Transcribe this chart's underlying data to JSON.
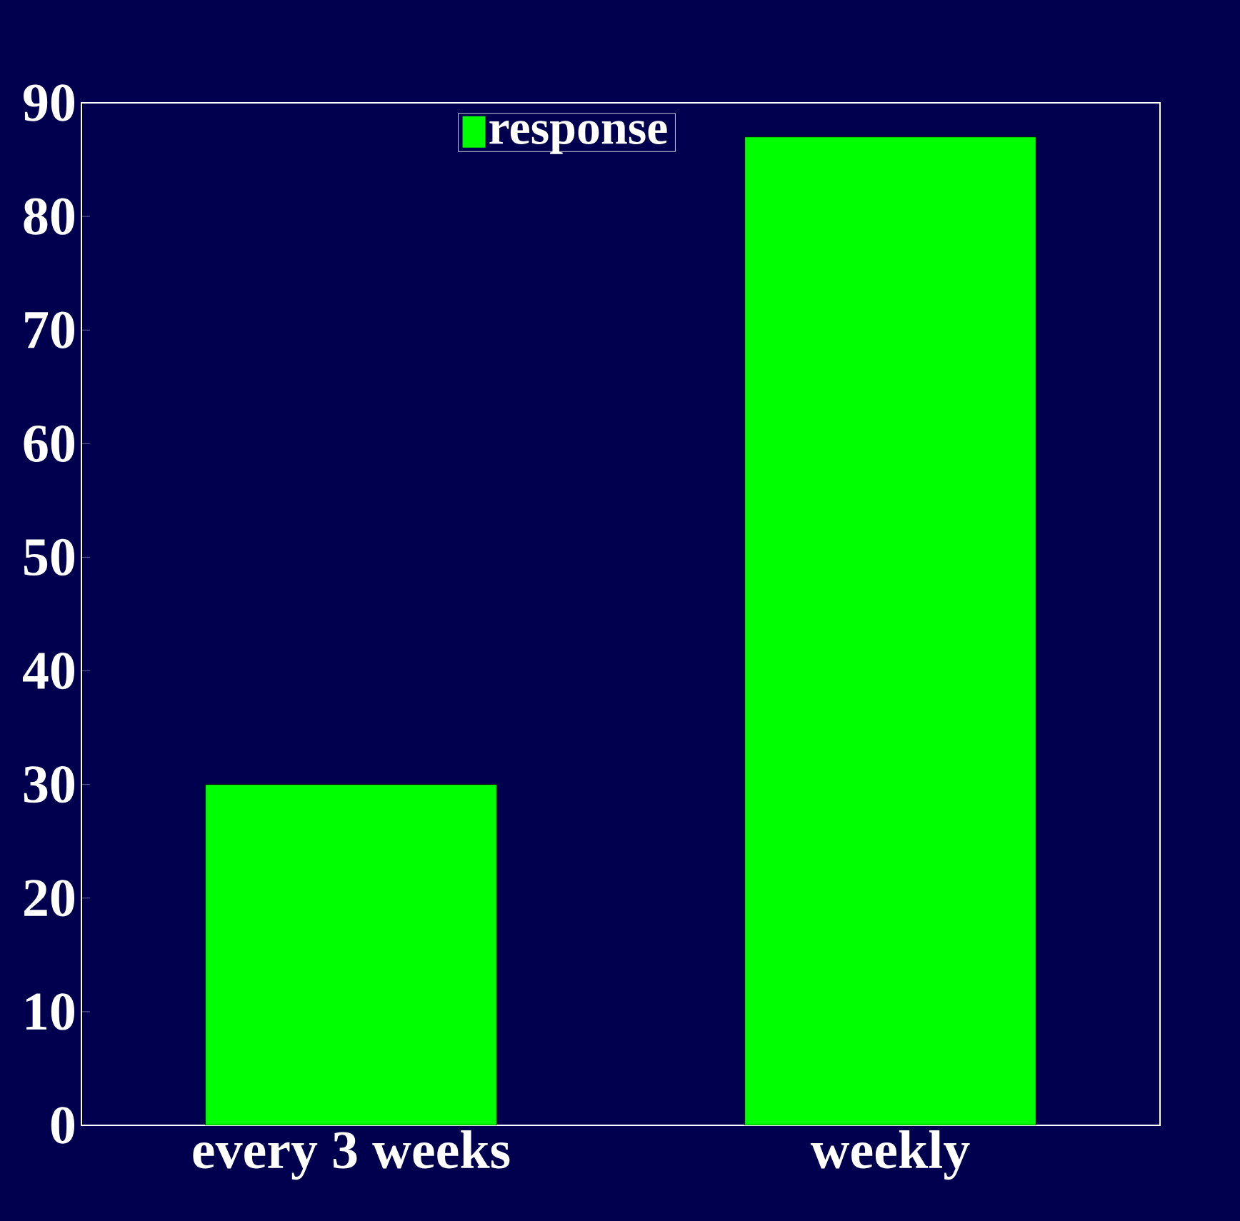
{
  "chart_data": {
    "type": "bar",
    "categories": [
      "every 3 weeks",
      "weekly"
    ],
    "series": [
      {
        "name": "response",
        "color": "#00ff00",
        "values": [
          30,
          87
        ]
      }
    ],
    "ylim": [
      0,
      90
    ],
    "yticks": [
      0,
      10,
      20,
      30,
      40,
      50,
      60,
      70,
      80,
      90
    ],
    "legend": "top"
  }
}
